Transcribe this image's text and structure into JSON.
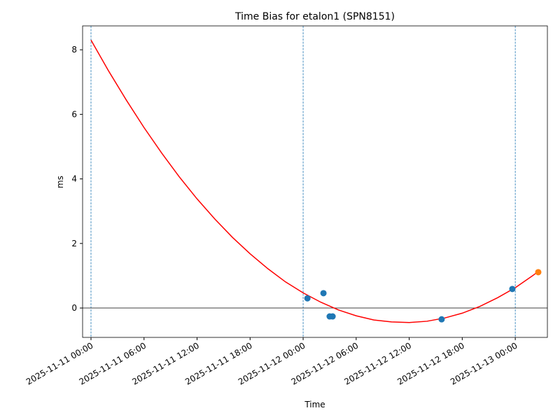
{
  "chart_data": {
    "type": "line",
    "title": "Time Bias for etalon1 (SPN8151)",
    "x_label": "Time",
    "y_label": "ms",
    "xlim": [
      "2025-11-10 23:03",
      "2025-11-13 03:38"
    ],
    "xticks": [
      "2025-11-11 00:00",
      "2025-11-11 06:00",
      "2025-11-11 12:00",
      "2025-11-11 18:00",
      "2025-11-12 00:00",
      "2025-11-12 06:00",
      "2025-11-12 12:00",
      "2025-11-12 18:00",
      "2025-11-13 00:00"
    ],
    "ylim": [
      -0.91,
      8.74
    ],
    "yticks": [
      0,
      2,
      4,
      6,
      8
    ],
    "vlines": [
      "2025-11-11 00:00",
      "2025-11-12 00:00",
      "2025-11-13 00:00"
    ],
    "vline_color": "#1f77b4",
    "hline": 0,
    "series": [
      {
        "type": "line",
        "color": "#ff0000",
        "x": [
          "2025-11-11 00:00",
          "2025-11-11 02:00",
          "2025-11-11 04:00",
          "2025-11-11 06:00",
          "2025-11-11 08:00",
          "2025-11-11 10:00",
          "2025-11-11 12:00",
          "2025-11-11 14:00",
          "2025-11-11 16:00",
          "2025-11-11 18:00",
          "2025-11-11 20:00",
          "2025-11-11 22:00",
          "2025-11-12 00:00",
          "2025-11-12 02:00",
          "2025-11-12 04:00",
          "2025-11-12 06:00",
          "2025-11-12 08:00",
          "2025-11-12 10:00",
          "2025-11-12 12:00",
          "2025-11-12 14:00",
          "2025-11-12 16:00",
          "2025-11-12 18:00",
          "2025-11-12 20:00",
          "2025-11-12 22:00",
          "2025-11-13 00:00",
          "2025-11-13 02:00",
          "2025-11-13 02:36"
        ],
        "values": [
          8.3,
          7.34,
          6.44,
          5.59,
          4.8,
          4.06,
          3.38,
          2.76,
          2.19,
          1.68,
          1.22,
          0.81,
          0.47,
          0.18,
          -0.06,
          -0.24,
          -0.37,
          -0.43,
          -0.45,
          -0.41,
          -0.31,
          -0.16,
          0.05,
          0.32,
          0.63,
          1.01,
          1.13
        ]
      },
      {
        "type": "scatter",
        "color": "#1f77b4",
        "x": [
          "2025-11-12 00:29",
          "2025-11-12 02:18",
          "2025-11-12 03:00",
          "2025-11-12 03:20",
          "2025-11-12 15:40",
          "2025-11-12 23:40"
        ],
        "values": [
          0.3,
          0.46,
          -0.26,
          -0.26,
          -0.35,
          0.59
        ]
      },
      {
        "type": "scatter",
        "color": "#ff7f0e",
        "x": [
          "2025-11-13 02:36"
        ],
        "values": [
          1.11
        ]
      }
    ]
  }
}
